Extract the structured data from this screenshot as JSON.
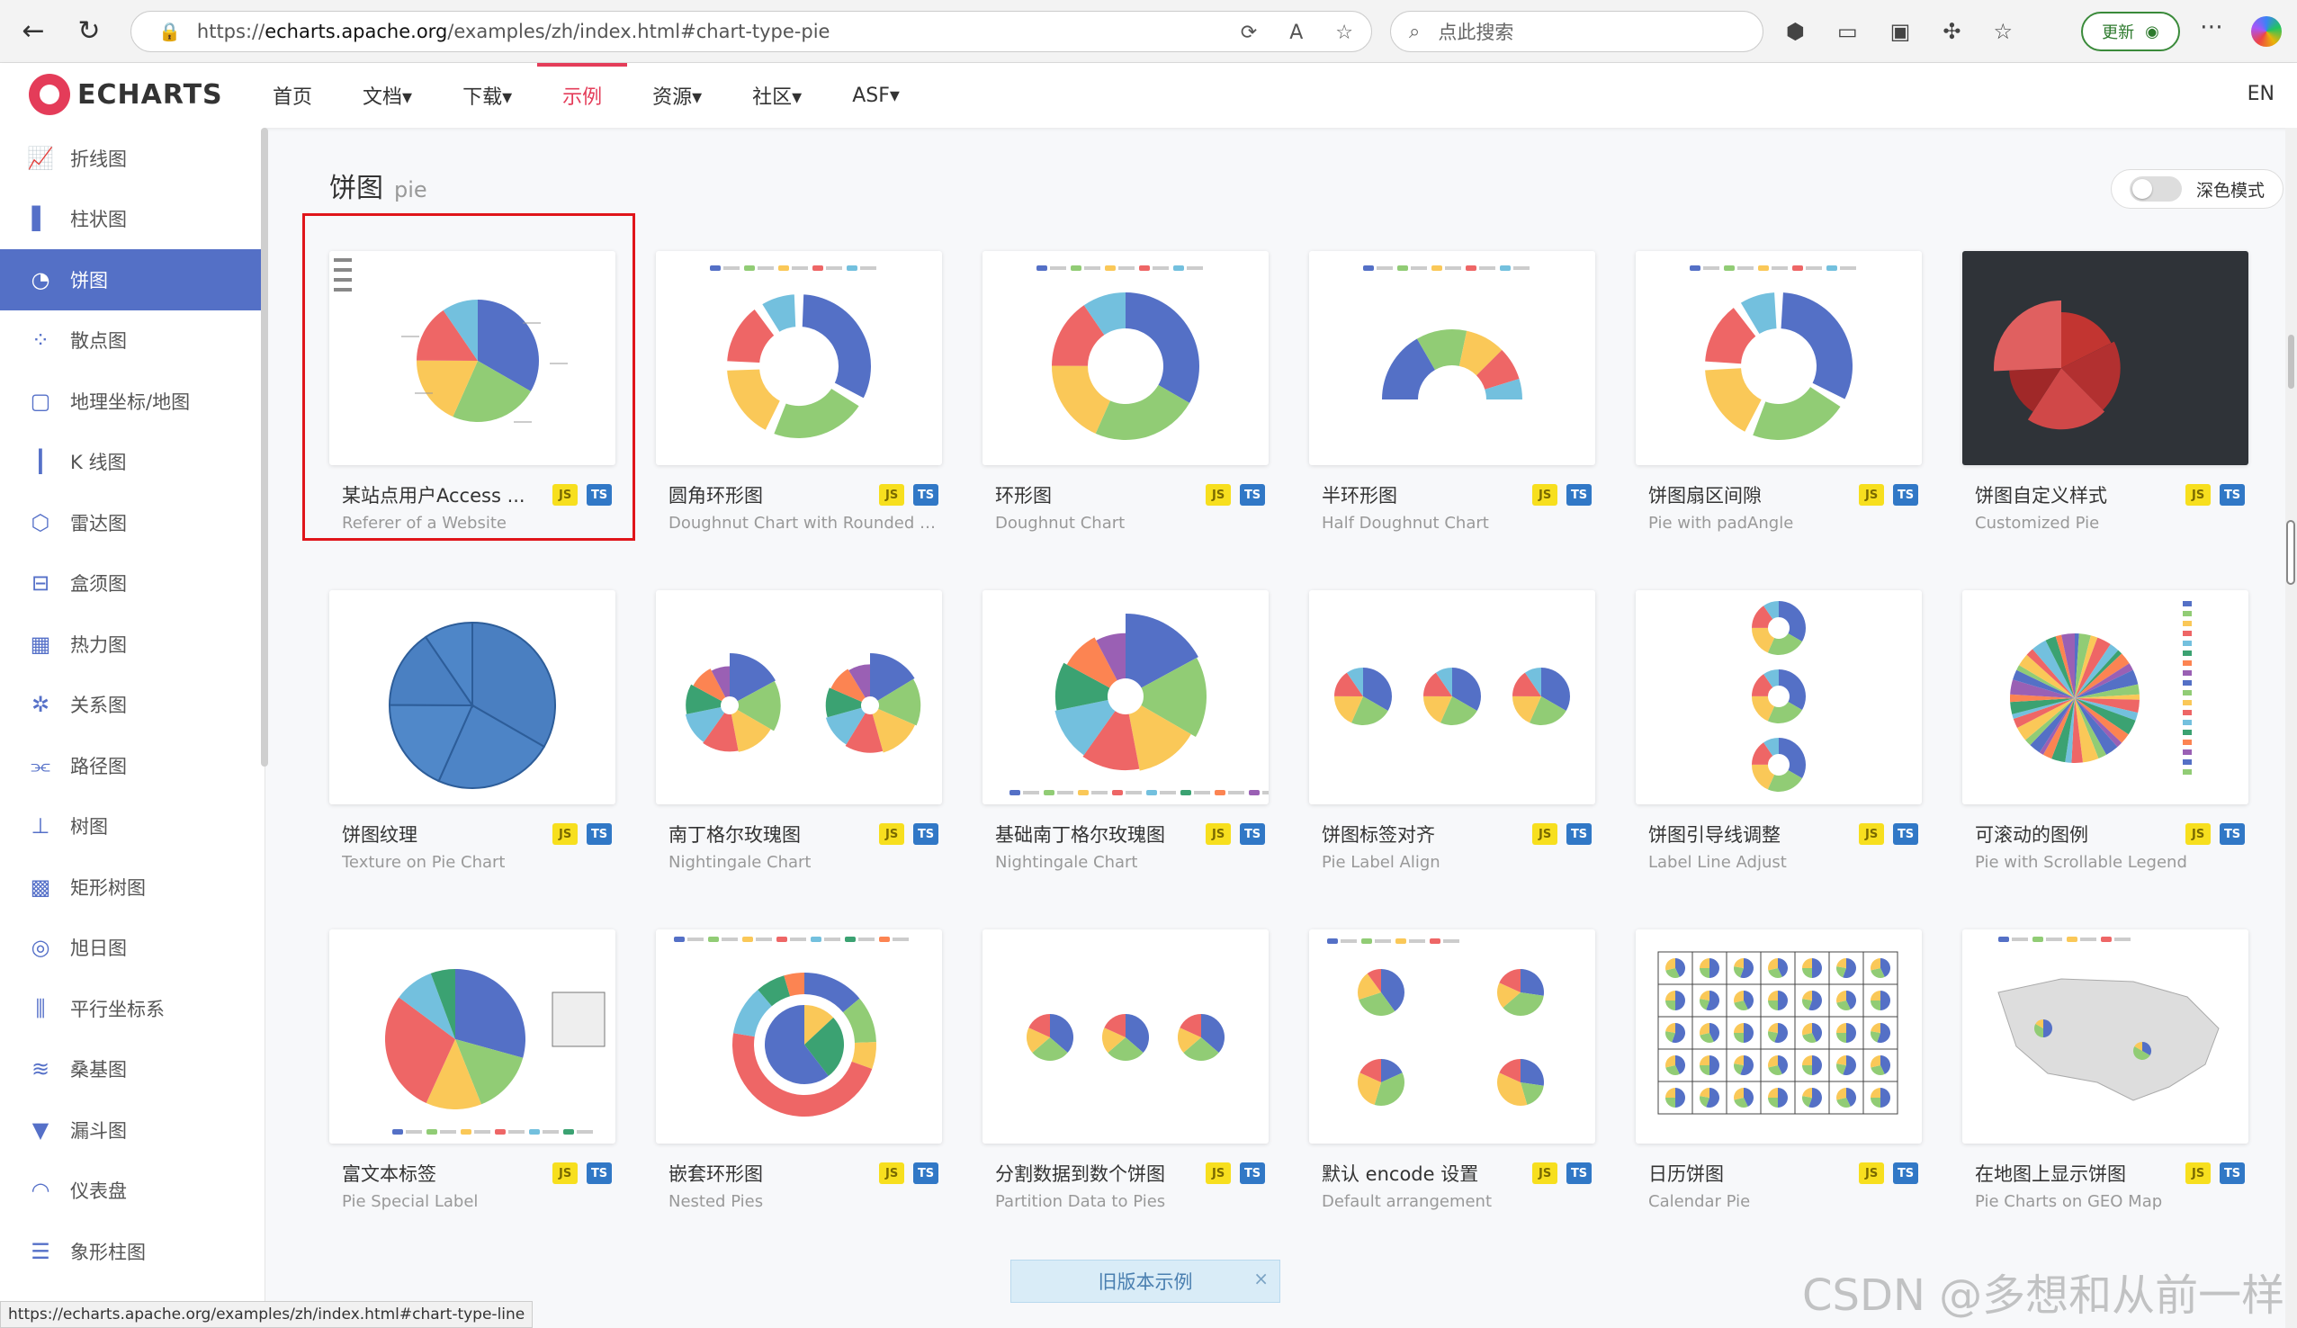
{
  "browser": {
    "url_prefix": "https://",
    "url_host": "echarts.apache.org",
    "url_path": "/examples/zh/index.html#chart-type-pie",
    "search_placeholder": "点此搜索",
    "update_label": "更新"
  },
  "site": {
    "logo": "ECHARTS",
    "nav": [
      "首页",
      "文档▾",
      "下载▾",
      "示例",
      "资源▾",
      "社区▾",
      "ASF▾"
    ],
    "active_nav": "示例",
    "lang": "EN"
  },
  "sidebar": {
    "items": [
      {
        "label": "折线图",
        "icon": "line-chart-icon",
        "glyph": "📈"
      },
      {
        "label": "柱状图",
        "icon": "bar-chart-icon",
        "glyph": "▌"
      },
      {
        "label": "饼图",
        "icon": "pie-chart-icon",
        "glyph": "◔",
        "active": true
      },
      {
        "label": "散点图",
        "icon": "scatter-chart-icon",
        "glyph": "⁘"
      },
      {
        "label": "地理坐标/地图",
        "icon": "map-icon",
        "glyph": "▢"
      },
      {
        "label": "K 线图",
        "icon": "candlestick-icon",
        "glyph": "┃"
      },
      {
        "label": "雷达图",
        "icon": "radar-icon",
        "glyph": "⬡"
      },
      {
        "label": "盒须图",
        "icon": "boxplot-icon",
        "glyph": "⊟"
      },
      {
        "label": "热力图",
        "icon": "heatmap-icon",
        "glyph": "▦"
      },
      {
        "label": "关系图",
        "icon": "graph-icon",
        "glyph": "✲"
      },
      {
        "label": "路径图",
        "icon": "lines-icon",
        "glyph": "⫘"
      },
      {
        "label": "树图",
        "icon": "tree-icon",
        "glyph": "⊥"
      },
      {
        "label": "矩形树图",
        "icon": "treemap-icon",
        "glyph": "▩"
      },
      {
        "label": "旭日图",
        "icon": "sunburst-icon",
        "glyph": "◎"
      },
      {
        "label": "平行坐标系",
        "icon": "parallel-icon",
        "glyph": "⫼"
      },
      {
        "label": "桑基图",
        "icon": "sankey-icon",
        "glyph": "≋"
      },
      {
        "label": "漏斗图",
        "icon": "funnel-icon",
        "glyph": "▼"
      },
      {
        "label": "仪表盘",
        "icon": "gauge-icon",
        "glyph": "◠"
      },
      {
        "label": "象形柱图",
        "icon": "pictorial-bar-icon",
        "glyph": "☰"
      }
    ]
  },
  "section": {
    "title": "饼图",
    "title_en": "pie",
    "dark_mode_label": "深色模式"
  },
  "cards": [
    {
      "title": "某站点用户Access ...",
      "sub": "Referer of a Website",
      "kind": "pie"
    },
    {
      "title": "圆角环形图",
      "sub": "Doughnut Chart with Rounded Co...",
      "kind": "donut-round"
    },
    {
      "title": "环形图",
      "sub": "Doughnut Chart",
      "kind": "donut"
    },
    {
      "title": "半环形图",
      "sub": "Half Doughnut Chart",
      "kind": "half"
    },
    {
      "title": "饼图扇区间隙",
      "sub": "Pie with padAngle",
      "kind": "pad"
    },
    {
      "title": "饼图自定义样式",
      "sub": "Customized Pie",
      "kind": "custom"
    },
    {
      "title": "饼图纹理",
      "sub": "Texture on Pie Chart",
      "kind": "texture"
    },
    {
      "title": "南丁格尔玫瑰图",
      "sub": "Nightingale Chart",
      "kind": "rose2"
    },
    {
      "title": "基础南丁格尔玫瑰图",
      "sub": "Nightingale Chart",
      "kind": "rose"
    },
    {
      "title": "饼图标签对齐",
      "sub": "Pie Label Align",
      "kind": "align"
    },
    {
      "title": "饼图引导线调整",
      "sub": "Label Line Adjust",
      "kind": "labelline"
    },
    {
      "title": "可滚动的图例",
      "sub": "Pie with Scrollable Legend",
      "kind": "scroll"
    },
    {
      "title": "富文本标签",
      "sub": "Pie Special Label",
      "kind": "rich"
    },
    {
      "title": "嵌套环形图",
      "sub": "Nested Pies",
      "kind": "nested"
    },
    {
      "title": "分割数据到数个饼图",
      "sub": "Partition Data to Pies",
      "kind": "partition"
    },
    {
      "title": "默认 encode 设置",
      "sub": "Default arrangement",
      "kind": "encode"
    },
    {
      "title": "日历饼图",
      "sub": "Calendar Pie",
      "kind": "calendar"
    },
    {
      "title": "在地图上显示饼图",
      "sub": "Pie Charts on GEO Map",
      "kind": "geo"
    }
  ],
  "badges": {
    "js": "JS",
    "ts": "TS"
  },
  "palette": [
    "#5470c6",
    "#91cc75",
    "#fac858",
    "#ee6666",
    "#73c0de",
    "#3ba272",
    "#fc8452",
    "#9a60b4"
  ],
  "old_version_label": "旧版本示例",
  "status_url": "https://echarts.apache.org/examples/zh/index.html#chart-type-line",
  "watermark": "CSDN @多想和从前一样"
}
